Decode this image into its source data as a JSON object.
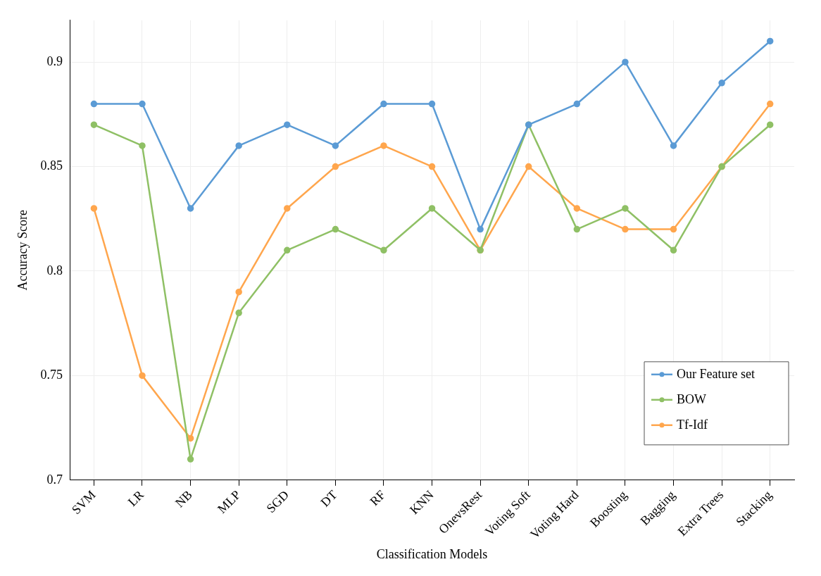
{
  "chart_data": {
    "type": "line",
    "xlabel": "Classification Models",
    "ylabel": "Accuracy Score",
    "categories": [
      "SVM",
      "LR",
      "NB",
      "MLP",
      "SGD",
      "DT",
      "RF",
      "KNN",
      "OnevsRest",
      "Voting Soft",
      "Voting Hard",
      "Boosting",
      "Bagging",
      "Extra Trees",
      "Stacking"
    ],
    "series": [
      {
        "name": "Our Feature set",
        "color": "#5b9bd5",
        "values": [
          0.88,
          0.88,
          0.83,
          0.86,
          0.87,
          0.86,
          0.88,
          0.88,
          0.82,
          0.87,
          0.88,
          0.9,
          0.86,
          0.89,
          0.91
        ]
      },
      {
        "name": "BOW",
        "color": "#8fc065",
        "values": [
          0.87,
          0.86,
          0.71,
          0.78,
          0.81,
          0.82,
          0.81,
          0.83,
          0.81,
          0.87,
          0.82,
          0.83,
          0.81,
          0.85,
          0.87
        ]
      },
      {
        "name": "Tf-Idf",
        "color": "#ffa64d",
        "values": [
          0.83,
          0.75,
          0.72,
          0.79,
          0.83,
          0.85,
          0.86,
          0.85,
          0.81,
          0.85,
          0.83,
          0.82,
          0.82,
          0.85,
          0.88
        ]
      }
    ],
    "ylim": [
      0.7,
      0.92
    ],
    "yticks": [
      0.7,
      0.75,
      0.8,
      0.85,
      0.9
    ],
    "grid": true,
    "legend": "bottom right",
    "marker": "circle",
    "line_style": "solid"
  }
}
